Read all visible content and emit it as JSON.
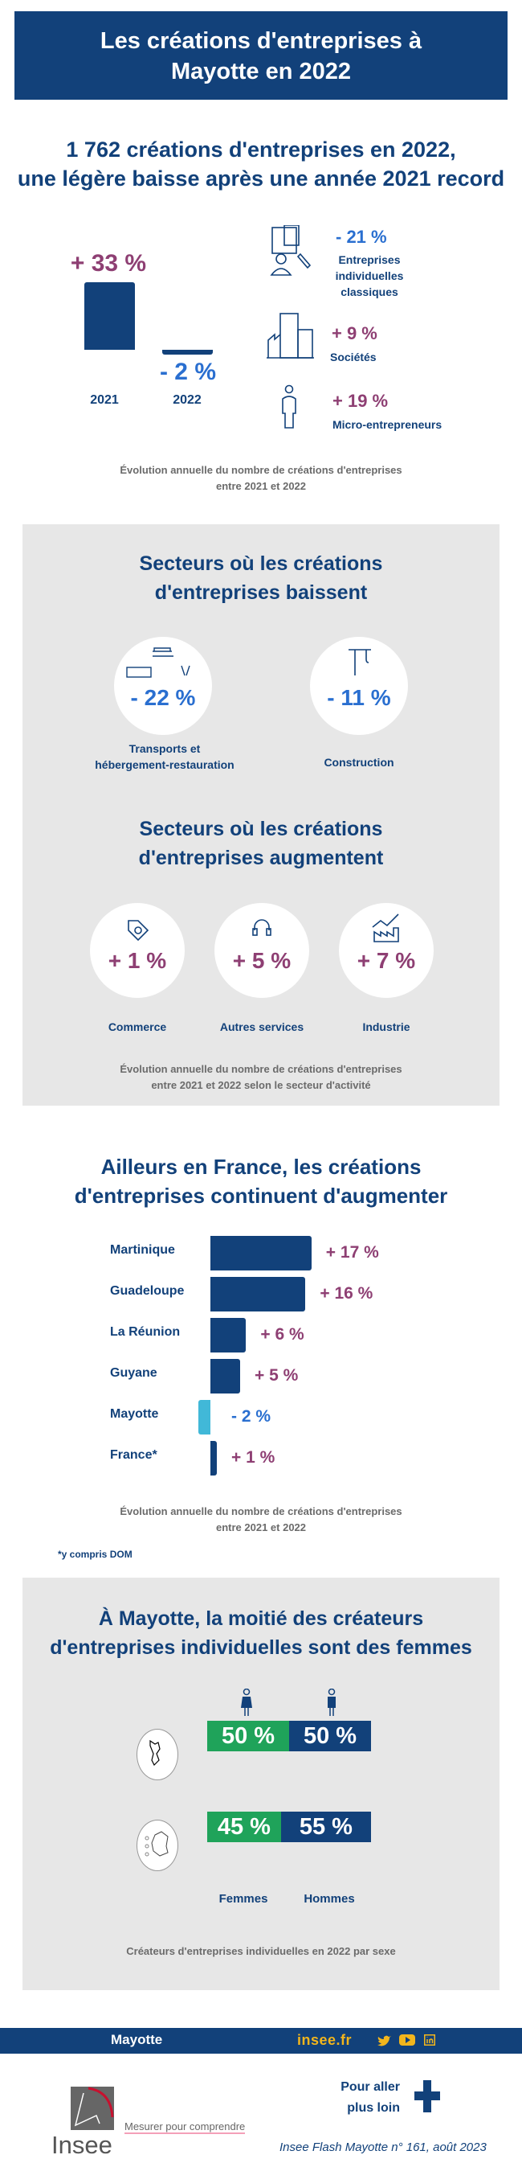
{
  "header": {
    "title_line1": "Les créations d'entreprises à",
    "title_line2": "Mayotte en 2022"
  },
  "section1": {
    "title_line1": "1 762 créations d'entreprises en 2022,",
    "title_line2": "une légère baisse après une année 2021 record",
    "bars": [
      {
        "year": "2021",
        "label": "+ 33 %",
        "value": 33
      },
      {
        "year": "2022",
        "label": "- 2 %",
        "value": -2
      }
    ],
    "types": [
      {
        "value": "- 21 %",
        "label_lines": [
          "Entreprises",
          "individuelles",
          "classiques"
        ],
        "icon": "individual-entrepreneur-icon"
      },
      {
        "value": "+ 9 %",
        "label_lines": [
          "Sociétés"
        ],
        "icon": "buildings-icon"
      },
      {
        "value": "+ 19 %",
        "label_lines": [
          "Micro-entrepreneurs"
        ],
        "icon": "person-icon"
      }
    ],
    "caption_line1": "Évolution annuelle du nombre de créations d'entreprises",
    "caption_line2": "entre 2021 et 2022"
  },
  "section2": {
    "down_title_line1": "Secteurs où les créations",
    "down_title_line2": "d'entreprises baissent",
    "down": [
      {
        "value": "- 22 %",
        "label_lines": [
          "Transports et",
          "hébergement-restauration"
        ]
      },
      {
        "value": "- 11 %",
        "label_lines": [
          "Construction"
        ]
      }
    ],
    "up_title_line1": "Secteurs où les créations",
    "up_title_line2": "d'entreprises augmentent",
    "up": [
      {
        "value": "+ 1 %",
        "label": "Commerce"
      },
      {
        "value": "+ 5 %",
        "label": "Autres services"
      },
      {
        "value": "+ 7 %",
        "label": "Industrie"
      }
    ],
    "caption_line1": "Évolution annuelle du nombre de créations d'entreprises",
    "caption_line2": "entre 2021 et 2022 selon le secteur d'activité"
  },
  "section3": {
    "title_line1": "Ailleurs en France, les créations",
    "title_line2": "d'entreprises continuent d'augmenter",
    "caption_line1": "Évolution annuelle du nombre de créations d'entreprises",
    "caption_line2": "entre 2021 et 2022",
    "footnote": "*y compris DOM"
  },
  "chart_data": {
    "type": "bar",
    "orientation": "horizontal",
    "categories": [
      "Martinique",
      "Guadeloupe",
      "La Réunion",
      "Guyane",
      "Mayotte",
      "France*"
    ],
    "values": [
      17,
      16,
      6,
      5,
      -2,
      1
    ],
    "labels": [
      "+ 17 %",
      "+ 16 %",
      "+ 6 %",
      "+ 5 %",
      "- 2 %",
      "+ 1 %"
    ],
    "unit": "%"
  },
  "section4": {
    "title_line1": "À Mayotte, la moitié des créateurs",
    "title_line2": "d'entreprises individuelles sont des femmes",
    "rows": [
      {
        "region": "Mayotte",
        "femmes": 50,
        "hommes": 50,
        "femmes_label": "50 %",
        "hommes_label": "50 %"
      },
      {
        "region": "France",
        "femmes": 45,
        "hommes": 55,
        "femmes_label": "45 %",
        "hommes_label": "55 %"
      }
    ],
    "femmes": "Femmes",
    "hommes": "Hommes",
    "caption": "Créateurs d'entreprises individuelles en 2022 par sexe"
  },
  "footer": {
    "region": "Mayotte",
    "site": "insee.fr",
    "more_line1": "Pour aller",
    "more_line2": "plus loin",
    "logo_text": "Insee",
    "tagline": "Mesurer pour comprendre",
    "publication": "Insee Flash Mayotte n° 161, août 2023"
  },
  "colors": {
    "navy": "#12417a",
    "plum": "#8e3f73",
    "blue": "#2a6fd0",
    "green": "#1fa35a",
    "light_blue": "#41b8d8",
    "grey_bg": "#e7e7e7",
    "yellow": "#f2b51c"
  }
}
